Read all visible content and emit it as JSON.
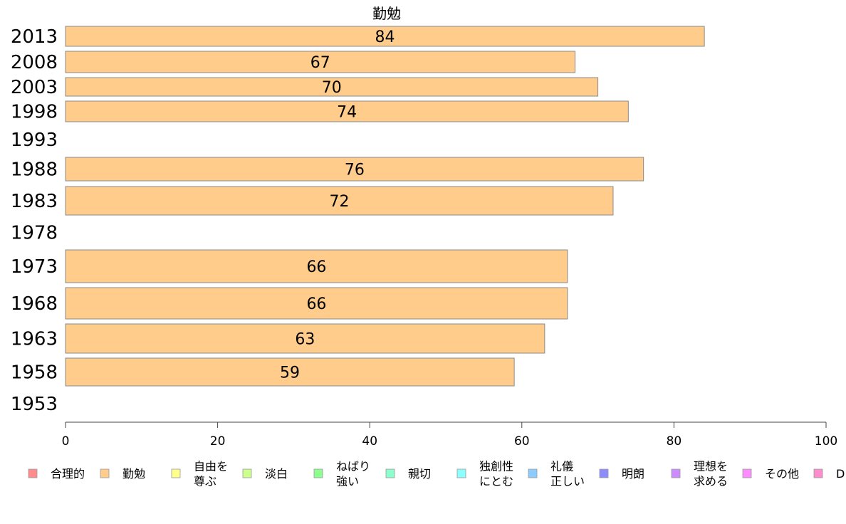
{
  "chart_data": {
    "type": "bar",
    "orientation": "horizontal",
    "title": "勤勉",
    "categories": [
      "2013",
      "2008",
      "2003",
      "1998",
      "1993",
      "1988",
      "1983",
      "1978",
      "1973",
      "1968",
      "1963",
      "1958",
      "1953"
    ],
    "series": [
      {
        "name": "勤勉",
        "color": "#ffcc8c",
        "values": [
          84,
          67,
          70,
          74,
          null,
          76,
          72,
          null,
          66,
          66,
          63,
          59,
          null
        ]
      }
    ],
    "data_labels": [
      "84",
      "67",
      "70",
      "74",
      "",
      "76",
      "72",
      "",
      "66",
      "66",
      "63",
      "59",
      ""
    ],
    "xlim": [
      0,
      100
    ],
    "xticks": [
      "0",
      "20",
      "40",
      "60",
      "80",
      "100"
    ],
    "grid": false,
    "legend_position": "bottom",
    "legend": [
      {
        "label": "合理的",
        "color": "#ff8c8c"
      },
      {
        "label": "勤勉",
        "color": "#ffcc8c"
      },
      {
        "label": "自由を\n尊ぶ",
        "color": "#ffff8c"
      },
      {
        "label": "淡白",
        "color": "#ccff8c"
      },
      {
        "label": "ねばり\n強い",
        "color": "#8cff8c"
      },
      {
        "label": "親切",
        "color": "#8cffcc"
      },
      {
        "label": "独創性\nにとむ",
        "color": "#8cffff"
      },
      {
        "label": "礼儀\n正しい",
        "color": "#8cccff"
      },
      {
        "label": "明朗",
        "color": "#8c8cff"
      },
      {
        "label": "理想を\n求める",
        "color": "#cc8cff"
      },
      {
        "label": "その他",
        "color": "#ff8cff"
      },
      {
        "label": "D",
        "color": "#ff8ccc"
      }
    ]
  }
}
